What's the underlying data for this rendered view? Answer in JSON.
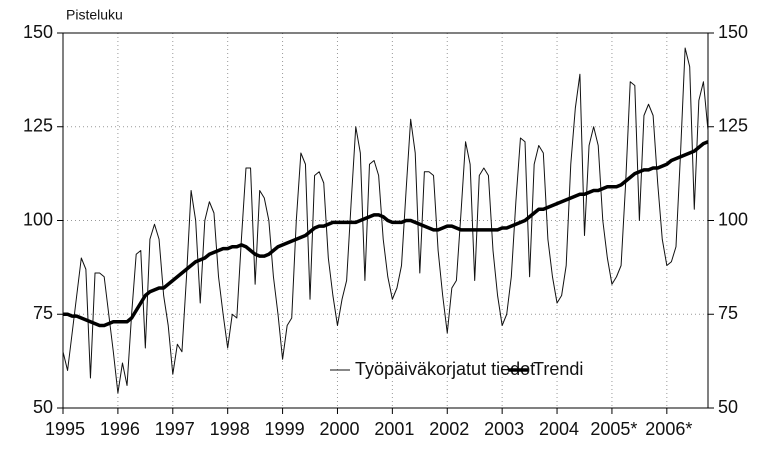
{
  "chart_data": {
    "type": "line",
    "y_label": "Pisteluku",
    "categories": [
      "1995",
      null,
      null,
      null,
      null,
      null,
      null,
      null,
      null,
      null,
      null,
      null,
      "1996",
      null,
      null,
      null,
      null,
      null,
      null,
      null,
      null,
      null,
      null,
      null,
      "1997",
      null,
      null,
      null,
      null,
      null,
      null,
      null,
      null,
      null,
      null,
      null,
      "1998",
      null,
      null,
      null,
      null,
      null,
      null,
      null,
      null,
      null,
      null,
      null,
      "1999",
      null,
      null,
      null,
      null,
      null,
      null,
      null,
      null,
      null,
      null,
      null,
      "2000",
      null,
      null,
      null,
      null,
      null,
      null,
      null,
      null,
      null,
      null,
      null,
      "2001",
      null,
      null,
      null,
      null,
      null,
      null,
      null,
      null,
      null,
      null,
      null,
      "2002",
      null,
      null,
      null,
      null,
      null,
      null,
      null,
      null,
      null,
      null,
      null,
      "2003",
      null,
      null,
      null,
      null,
      null,
      null,
      null,
      null,
      null,
      null,
      null,
      "2004",
      null,
      null,
      null,
      null,
      null,
      null,
      null,
      null,
      null,
      null,
      null,
      "2005*",
      null,
      null,
      null,
      null,
      null,
      null,
      null,
      null,
      null,
      null,
      null,
      "2006*",
      null,
      null,
      null,
      null,
      null,
      null,
      null,
      null,
      null
    ],
    "series": [
      {
        "name": "Työpäiväkorjatut tiedot",
        "color": "#111111",
        "line_width": 1,
        "values": [
          65,
          60,
          70,
          80,
          90,
          87,
          58,
          86,
          86,
          85,
          75,
          65,
          54,
          62,
          56,
          75,
          91,
          92,
          66,
          95,
          99,
          95,
          80,
          72,
          59,
          67,
          65,
          85,
          108,
          100,
          78,
          100,
          105,
          102,
          85,
          75,
          66,
          75,
          74,
          95,
          114,
          114,
          83,
          108,
          106,
          100,
          85,
          75,
          63,
          72,
          74,
          100,
          118,
          115,
          79,
          112,
          113,
          110,
          90,
          80,
          72,
          79,
          84,
          105,
          125,
          118,
          84,
          115,
          116,
          112,
          95,
          85,
          79,
          82,
          88,
          108,
          127,
          118,
          86,
          113,
          113,
          112,
          92,
          80,
          70,
          82,
          84,
          102,
          121,
          115,
          84,
          112,
          114,
          112,
          92,
          80,
          72,
          75,
          85,
          105,
          122,
          121,
          85,
          115,
          120,
          118,
          95,
          85,
          78,
          80,
          88,
          115,
          130,
          139,
          96,
          120,
          125,
          120,
          100,
          90,
          83,
          85,
          88,
          110,
          137,
          136,
          100,
          128,
          131,
          128,
          110,
          95,
          88,
          89,
          93,
          118,
          146,
          141,
          103,
          132,
          137,
          124
        ]
      },
      {
        "name": "Trendi",
        "color": "#000000",
        "line_width": 3.5,
        "values": [
          75,
          75,
          74.5,
          74.5,
          74,
          73.5,
          73,
          72.5,
          72,
          72,
          72.5,
          73,
          73,
          73,
          73,
          74,
          76,
          78,
          80,
          81,
          81.5,
          82,
          82,
          83,
          84,
          85,
          86,
          87,
          88,
          89,
          89.5,
          90,
          91,
          91.5,
          92,
          92.5,
          92.5,
          93,
          93,
          93.5,
          93,
          92,
          91,
          90.5,
          90.5,
          91,
          92,
          93,
          93.5,
          94,
          94.5,
          95,
          95.5,
          96,
          97,
          98,
          98.5,
          98.5,
          99,
          99.5,
          99.5,
          99.5,
          99.5,
          99.5,
          99.5,
          100,
          100.5,
          101,
          101.5,
          101.5,
          101,
          100,
          99.5,
          99.5,
          99.5,
          100,
          100,
          99.5,
          99,
          98.5,
          98,
          97.5,
          97.5,
          98,
          98.5,
          98.5,
          98,
          97.5,
          97.5,
          97.5,
          97.5,
          97.5,
          97.5,
          97.5,
          97.5,
          97.5,
          98,
          98,
          98.5,
          99,
          99.5,
          100,
          101,
          102,
          103,
          103,
          103.5,
          104,
          104.5,
          105,
          105.5,
          106,
          106.5,
          107,
          107,
          107.5,
          108,
          108,
          108.5,
          109,
          109,
          109,
          109.5,
          110.5,
          111.5,
          112.5,
          113,
          113.5,
          113.5,
          114,
          114,
          114.5,
          115,
          116,
          116.5,
          117,
          117.5,
          118,
          118.5,
          119.5,
          120.5,
          121
        ]
      }
    ],
    "ylim": [
      50,
      150
    ],
    "yticks": [
      50,
      75,
      100,
      125,
      150
    ],
    "y2lim": [
      50,
      150
    ],
    "y2ticks": [
      50,
      75,
      100,
      125,
      150
    ],
    "grid": true,
    "legend": "lower right"
  }
}
